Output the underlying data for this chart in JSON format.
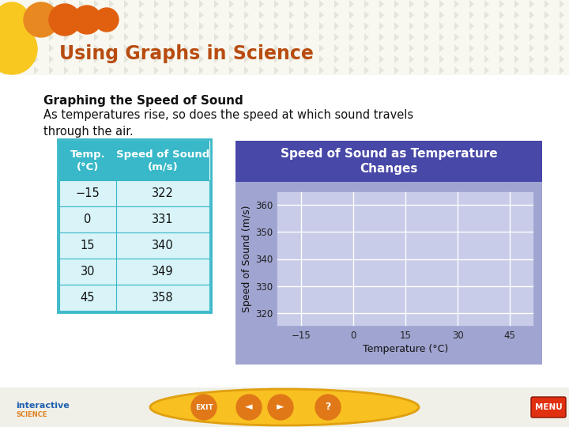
{
  "title": "Using Graphs in Science",
  "subtitle_bold": "Graphing the Speed of Sound",
  "subtitle_text": "As temperatures rise, so does the speed at which sound travels\nthrough the air.",
  "table_headers": [
    "Temp.\n(°C)",
    "Speed of Sound\n(m/s)"
  ],
  "table_data": [
    [
      -15,
      322
    ],
    [
      0,
      331
    ],
    [
      15,
      340
    ],
    [
      30,
      349
    ],
    [
      45,
      358
    ]
  ],
  "graph_title": "Speed of Sound as Temperature\nChanges",
  "x_label": "Temperature (°C)",
  "y_label": "Speed of Sound (m/s)",
  "x_ticks": [
    -15,
    0,
    15,
    30,
    45
  ],
  "y_ticks": [
    320,
    330,
    340,
    350,
    360
  ],
  "ylim": [
    315,
    365
  ],
  "xlim": [
    -22,
    52
  ],
  "slide_bg": "#ffffff",
  "title_color": "#b84c10",
  "table_header_color": "#38b8c8",
  "table_header_text": "#ffffff",
  "table_row_light": "#d8f4f8",
  "table_row_white": "#ffffff",
  "table_border": "#38b8c8",
  "graph_header_bg": "#4848a8",
  "graph_header_text": "#ffffff",
  "graph_plot_bg": "#c8cce8",
  "graph_outer_bg": "#a0a4d0",
  "footer_bar_bg": "#f0f0e8",
  "footer_oval_bg": "#f8c020",
  "footer_oval_border": "#e0a010",
  "footer_btn_bg": "#e07818",
  "footer_btn_text": "#ffffff",
  "menu_btn_bg": "#e03010",
  "menu_btn_text": "#ffffff",
  "diamond_color": "#d8d8cc",
  "logo_blue": "#2060b0",
  "logo_orange": "#e08020",
  "circle_yellow": "#f8c820",
  "circle_orange1": "#e88820",
  "circle_orange2": "#e06010",
  "top_bar_bg": "#f8f8f0"
}
